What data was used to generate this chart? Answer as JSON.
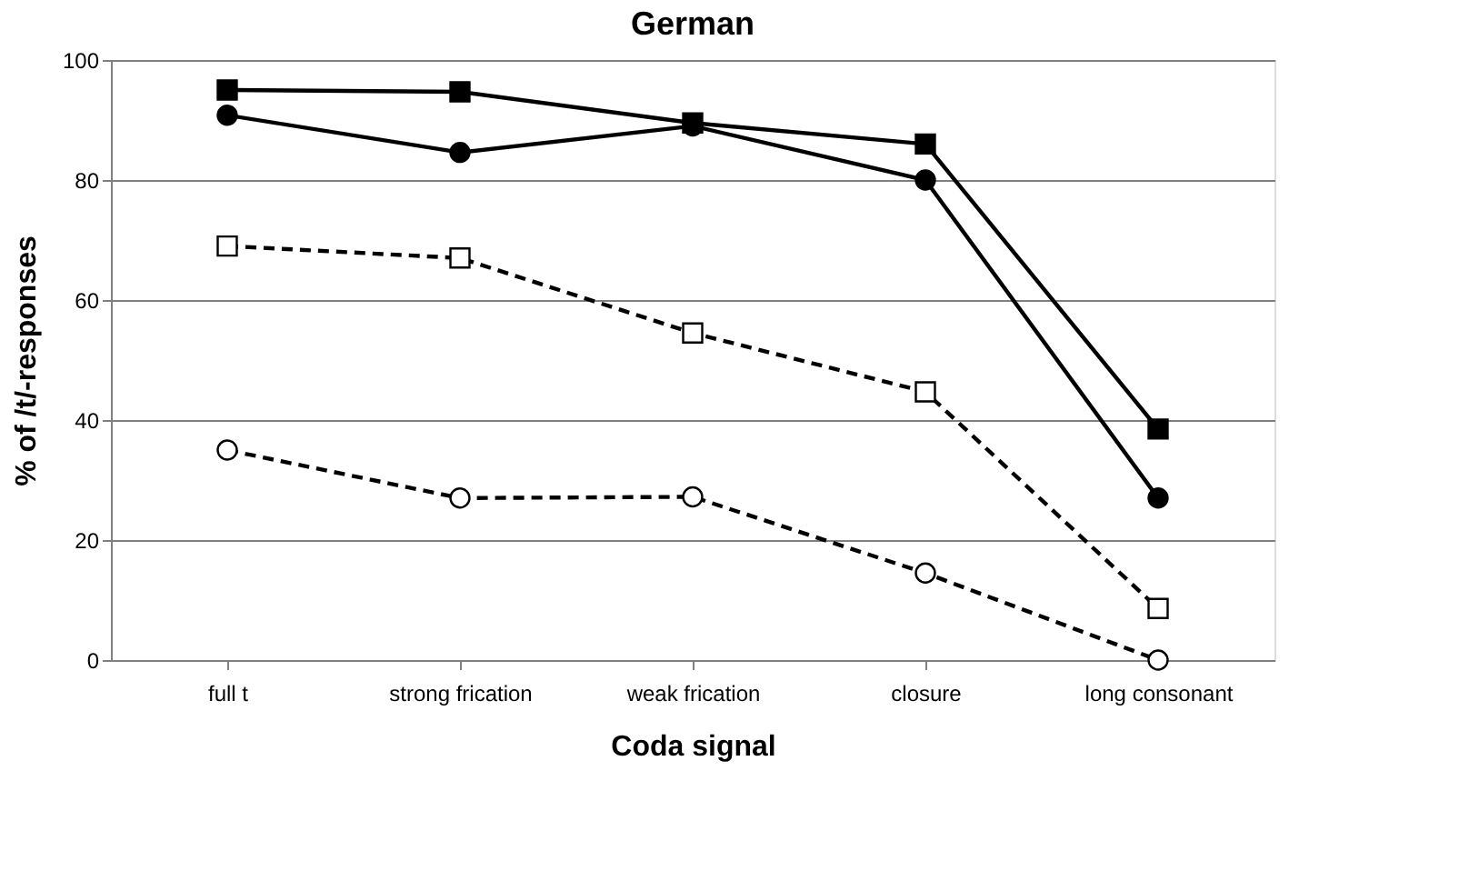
{
  "chart_data": {
    "type": "line",
    "title": "German",
    "xlabel": "Coda signal",
    "ylabel": "% of /t/-responses",
    "categories": [
      "full t",
      "strong frication",
      "weak frication",
      "closure",
      "long consonant"
    ],
    "series": [
      {
        "color": "#000000",
        "marker": "square",
        "line_style": "solid",
        "values": [
          95,
          94.7,
          89.5,
          86,
          38.5
        ]
      },
      {
        "color": "#000000",
        "marker": "circle",
        "line_style": "solid",
        "values": [
          90.8,
          84.6,
          89,
          80,
          27
        ]
      },
      {
        "color": "#000000",
        "marker": "square",
        "line_style": "dashed",
        "values": [
          69,
          67,
          54.5,
          44.7,
          8.6
        ]
      },
      {
        "color": "#000000",
        "marker": "circle",
        "line_style": "dashed",
        "values": [
          35,
          27,
          27.2,
          14.5,
          0
        ]
      }
    ],
    "ylim": [
      0,
      100
    ],
    "yticks": [
      0,
      20,
      40,
      60,
      80,
      100
    ],
    "grid": "y"
  }
}
